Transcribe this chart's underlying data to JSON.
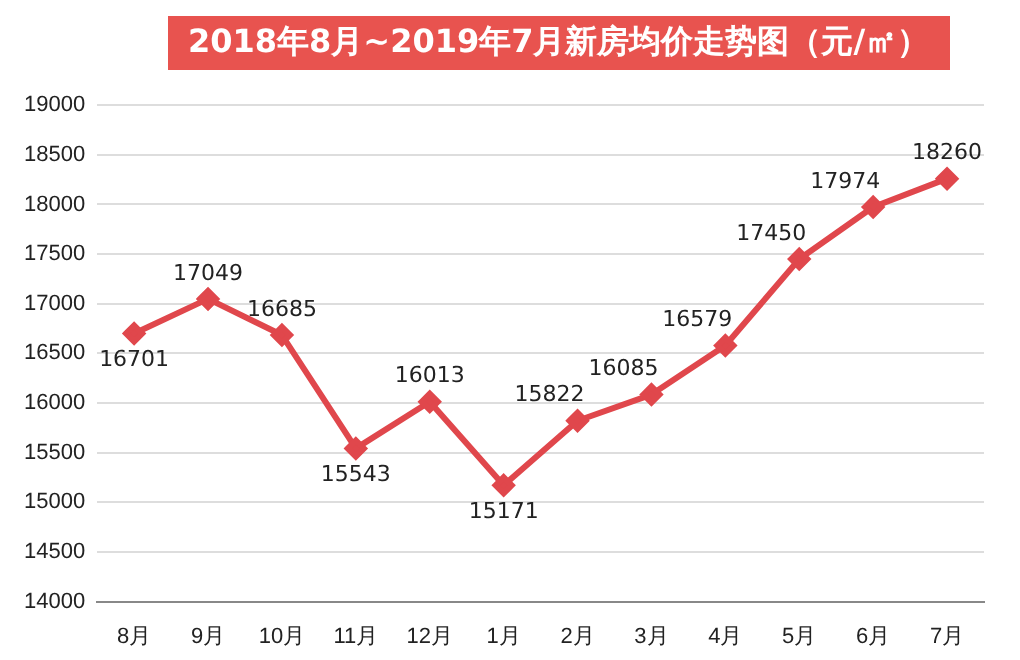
{
  "chart_data": {
    "type": "line",
    "title": "2018年8月~2019年7月新房均价走势图（元/㎡）",
    "categories": [
      "8月",
      "9月",
      "10月",
      "11月",
      "12月",
      "1月",
      "2月",
      "3月",
      "4月",
      "5月",
      "6月",
      "7月"
    ],
    "series": [
      {
        "color": "#e0474c",
        "values": [
          16701,
          17049,
          16685,
          15543,
          16013,
          15171,
          15822,
          16085,
          16579,
          17450,
          17974,
          18260
        ]
      }
    ],
    "ylim": [
      14000,
      19000
    ],
    "yticks": [
      14000,
      14500,
      15000,
      15500,
      16000,
      16500,
      17000,
      17500,
      18000,
      18500,
      19000
    ],
    "grid": "y",
    "legend": false,
    "marker": "diamond",
    "line_style": "solid",
    "data_labels": true
  }
}
